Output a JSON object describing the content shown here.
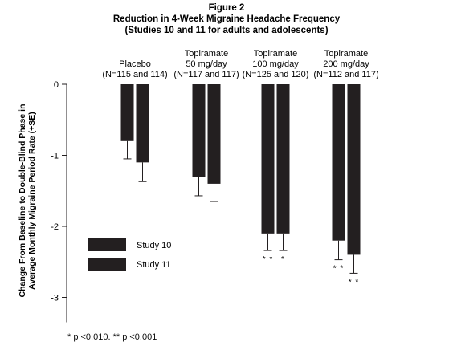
{
  "chart_data": {
    "type": "bar",
    "title": [
      "Figure 2",
      "Reduction in 4-Week Migraine Headache Frequency",
      "(Studies 10 and 11 for adults and adolescents)"
    ],
    "ylabel": [
      "Change From Baseline to Double-Blind Phase in",
      "Average Monthly Migraine Period Rate (+SE)"
    ],
    "ylim": [
      -3.35,
      0
    ],
    "yticks": [
      0,
      -1,
      -2,
      -3
    ],
    "ytick_labels": [
      "0",
      "-1",
      "-2",
      "-3"
    ],
    "categories": [
      {
        "lines": [
          "Placebo",
          "(N=115 and 114)"
        ]
      },
      {
        "lines": [
          "Topiramate",
          "50 mg/day",
          "(N=117 and 117)"
        ]
      },
      {
        "lines": [
          "Topiramate",
          "100 mg/day",
          "(N=125 and 120)"
        ]
      },
      {
        "lines": [
          "Topiramate",
          "200 mg/day",
          "(N=112 and 117)"
        ]
      }
    ],
    "series": [
      {
        "name": "Study 10",
        "values": [
          -0.8,
          -1.3,
          -2.1,
          -2.2
        ],
        "se": [
          0.25,
          0.27,
          0.24,
          0.27
        ],
        "significance": [
          "",
          "",
          "* *",
          "* *"
        ]
      },
      {
        "name": "Study 11",
        "values": [
          -1.1,
          -1.4,
          -2.1,
          -2.4
        ],
        "se": [
          0.27,
          0.25,
          0.24,
          0.26
        ],
        "significance": [
          "",
          "",
          "*",
          "* *"
        ]
      }
    ],
    "colors": {
      "bar": "#231f20",
      "axis": "#231f20"
    },
    "legend": "left-bottom",
    "grid": false
  },
  "footnote": "* p <0.010. ** p <0.001"
}
